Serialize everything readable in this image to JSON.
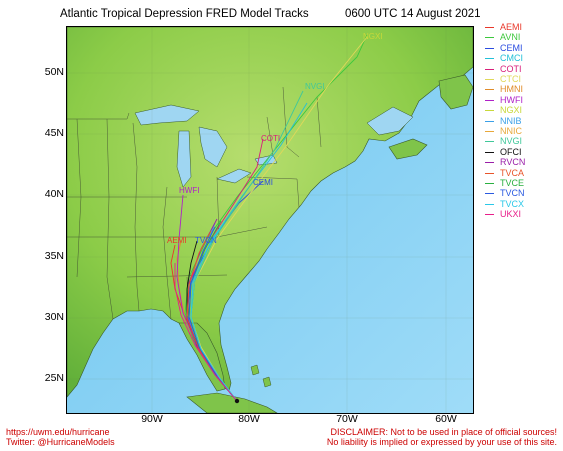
{
  "header": {
    "title": "Atlantic Tropical Depression FRED Model Tracks",
    "datetime": "0600 UTC 14 August 2021"
  },
  "axes": {
    "lat_labels": [
      "50N",
      "45N",
      "40N",
      "35N",
      "30N",
      "25N"
    ],
    "lon_labels": [
      "90W",
      "80W",
      "70W",
      "60W"
    ]
  },
  "legend": [
    {
      "name": "AEMI",
      "color": "#e8372a"
    },
    {
      "name": "AVNI",
      "color": "#3cc83c"
    },
    {
      "name": "CEMI",
      "color": "#2a4ce0"
    },
    {
      "name": "CMCI",
      "color": "#22c0d8"
    },
    {
      "name": "COTI",
      "color": "#d81e7a"
    },
    {
      "name": "CTCI",
      "color": "#e0d85a"
    },
    {
      "name": "HMNI",
      "color": "#e08c2a"
    },
    {
      "name": "HWFI",
      "color": "#b020c8"
    },
    {
      "name": "NGXI",
      "color": "#c8d83a"
    },
    {
      "name": "NNIB",
      "color": "#3aa0e8"
    },
    {
      "name": "NNIC",
      "color": "#e8a83a"
    },
    {
      "name": "NVGI",
      "color": "#40c89a"
    },
    {
      "name": "OFCI",
      "color": "#111111"
    },
    {
      "name": "RVCN",
      "color": "#9a1ea8"
    },
    {
      "name": "TVCA",
      "color": "#e8542a"
    },
    {
      "name": "TVCE",
      "color": "#2ab040"
    },
    {
      "name": "TVCN",
      "color": "#2a5ae0"
    },
    {
      "name": "TVCX",
      "color": "#2ac8e8"
    },
    {
      "name": "UKXI",
      "color": "#e81e8a"
    }
  ],
  "map_labels": {
    "nvgi": "NVGI",
    "coti": "COTI",
    "cemi": "CEMI",
    "hwfi": "HWFI",
    "aemi": "AEMI",
    "tvcn": "TVCN",
    "ngxi": "NGXI"
  },
  "footer": {
    "url": "https://uwm.edu/hurricane",
    "twitter": "Twitter: @HurricaneModels",
    "disclaimer1": "DISCLAIMER: Not to be used in place of official sources!",
    "disclaimer2": "No liability is implied or expressed by your use of this site."
  }
}
